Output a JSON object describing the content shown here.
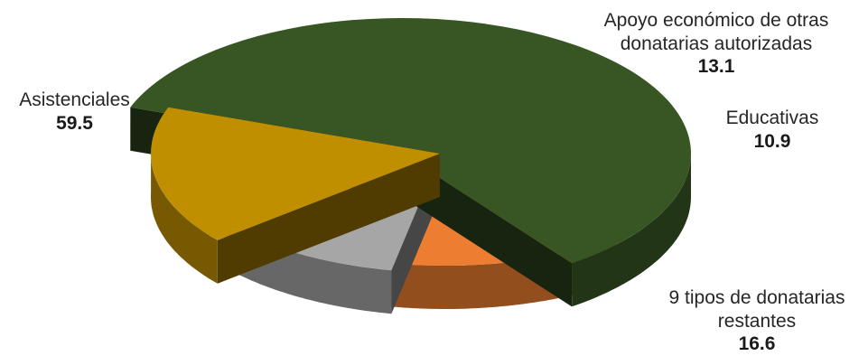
{
  "chart_data": {
    "type": "pie",
    "style": "3d-exploded",
    "legend": "none",
    "slices": [
      {
        "label": "Asistenciales",
        "value": 59.5,
        "color": "#375623"
      },
      {
        "label": "Apoyo económico de otras donatarias autorizadas",
        "value": 13.1,
        "color": "#ED7D31"
      },
      {
        "label": "Educativas",
        "value": 10.9,
        "color": "#A6A6A6"
      },
      {
        "label": "9 tipos de donatarias restantes",
        "value": 16.6,
        "color": "#BF8F00"
      }
    ],
    "labels": [
      {
        "lines": [
          "Asistenciales"
        ],
        "value": "59.5"
      },
      {
        "lines": [
          "Apoyo económico de otras",
          "donatarias autorizadas"
        ],
        "value": "13.1"
      },
      {
        "lines": [
          "Educativas"
        ],
        "value": "10.9"
      },
      {
        "lines": [
          "9 tipos de donatarias",
          "restantes"
        ],
        "value": "16.6"
      }
    ]
  }
}
